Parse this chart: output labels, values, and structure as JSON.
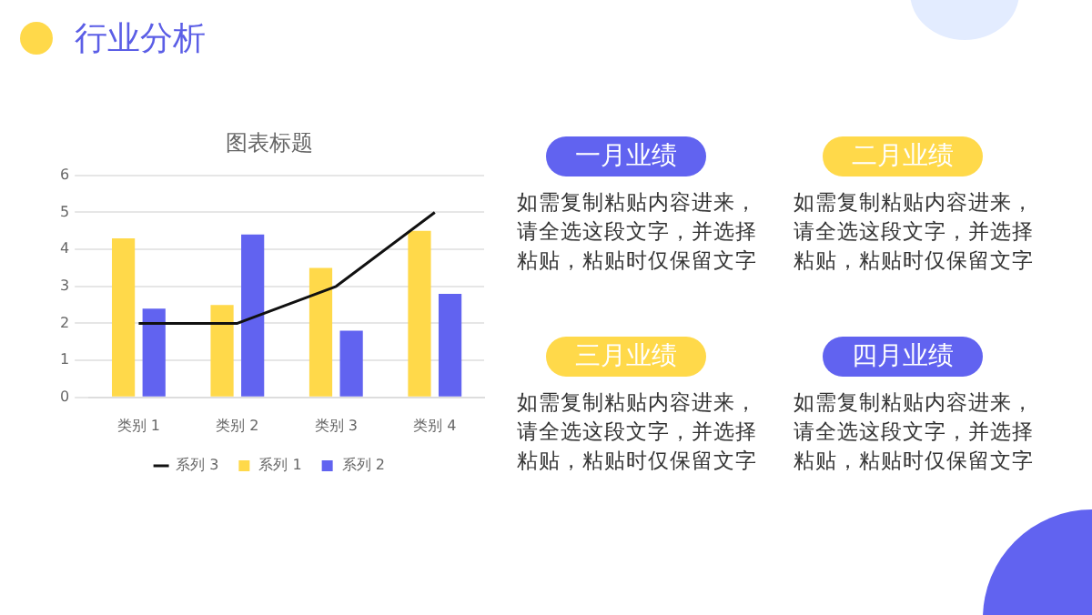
{
  "chart_data": [
    {
      "type": "bar",
      "title": "图表标题",
      "categories": [
        "类别 1",
        "类别 2",
        "类别 3",
        "类别 4"
      ],
      "series": [
        {
          "name": "系列 1",
          "color": "#ffd94a",
          "values": [
            4.3,
            2.5,
            3.5,
            4.5
          ]
        },
        {
          "name": "系列 2",
          "color": "#6163f0",
          "values": [
            2.4,
            4.4,
            1.8,
            2.8
          ]
        },
        {
          "name": "系列 3",
          "color": "#111111",
          "type": "line",
          "values": [
            2,
            2,
            3,
            5
          ]
        }
      ],
      "ylim": [
        0,
        6
      ],
      "yticks": [
        0,
        1,
        2,
        3,
        4,
        5,
        6
      ],
      "grid": "y",
      "legend": "bottom"
    },
    {
      "type": "other",
      "title": "行业分析",
      "annotations": [
        "一月业绩",
        "如需复制粘贴内容进来，请全选这段文字，并选择粘贴，粘贴时仅保留文字",
        "二月业绩",
        "如需复制粘贴内容进来，请全选这段文字，并选择粘贴，粘贴时仅保留文字",
        "三月业绩",
        "如需复制粘贴内容进来，请全选这段文字，并选择粘贴，粘贴时仅保留文字",
        "四月业绩",
        "如需复制粘贴内容进来，请全选这段文字，并选择粘贴，粘贴时仅保留文字"
      ],
      "colors": [
        "#6163f0",
        "#ffd94a",
        "#ffd94a",
        "#6163f0"
      ]
    }
  ]
}
